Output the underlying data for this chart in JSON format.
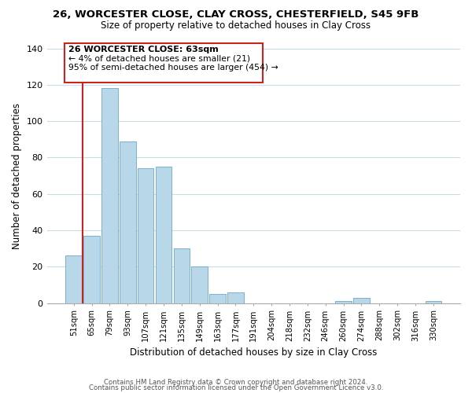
{
  "title1": "26, WORCESTER CLOSE, CLAY CROSS, CHESTERFIELD, S45 9FB",
  "title2": "Size of property relative to detached houses in Clay Cross",
  "xlabel": "Distribution of detached houses by size in Clay Cross",
  "ylabel": "Number of detached properties",
  "bar_labels": [
    "51sqm",
    "65sqm",
    "79sqm",
    "93sqm",
    "107sqm",
    "121sqm",
    "135sqm",
    "149sqm",
    "163sqm",
    "177sqm",
    "191sqm",
    "204sqm",
    "218sqm",
    "232sqm",
    "246sqm",
    "260sqm",
    "274sqm",
    "288sqm",
    "302sqm",
    "316sqm",
    "330sqm"
  ],
  "bar_heights": [
    26,
    37,
    118,
    89,
    74,
    75,
    30,
    20,
    5,
    6,
    0,
    0,
    0,
    0,
    0,
    1,
    3,
    0,
    0,
    0,
    1
  ],
  "bar_color": "#b8d8ea",
  "bar_edge_color": "#6aaac8",
  "highlight_color": "#cc2222",
  "annotation_border_color": "#cc2222",
  "annotation_text1": "26 WORCESTER CLOSE: 63sqm",
  "annotation_text2": "← 4% of detached houses are smaller (21)",
  "annotation_text3": "95% of semi-detached houses are larger (454) →",
  "ylim": [
    0,
    140
  ],
  "yticks": [
    0,
    20,
    40,
    60,
    80,
    100,
    120,
    140
  ],
  "footer1": "Contains HM Land Registry data © Crown copyright and database right 2024.",
  "footer2": "Contains public sector information licensed under the Open Government Licence v3.0.",
  "background_color": "#ffffff",
  "grid_color": "#c8dce8",
  "red_line_bar_index": 1
}
